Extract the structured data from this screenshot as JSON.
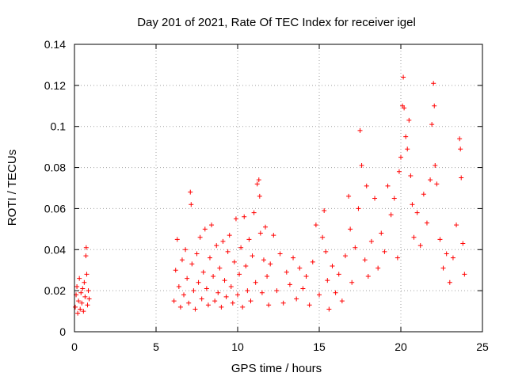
{
  "chart_data": {
    "type": "scatter",
    "title": "Day 201 of 2021, Rate Of TEC Index for receiver igel",
    "xlabel": "GPS time / hours",
    "ylabel": "ROTI / TECUs",
    "xlim": [
      0,
      25
    ],
    "ylim": [
      0,
      0.14
    ],
    "x_ticks": [
      0,
      5,
      10,
      15,
      20,
      25
    ],
    "x_tick_labels": [
      "0",
      "5",
      "10",
      "15",
      "20",
      "25"
    ],
    "y_ticks": [
      0,
      0.02,
      0.04,
      0.06,
      0.08,
      0.1,
      0.12,
      0.14
    ],
    "y_tick_labels": [
      "0",
      "0.02",
      "0.04",
      "0.06",
      "0.08",
      "0.1",
      "0.12",
      "0.14"
    ],
    "grid": true,
    "marker": "+",
    "marker_color": "#ff0000",
    "series": [
      {
        "name": "ROTI",
        "points": [
          [
            0.05,
            0.012
          ],
          [
            0.1,
            0.018
          ],
          [
            0.15,
            0.022
          ],
          [
            0.2,
            0.009
          ],
          [
            0.25,
            0.015
          ],
          [
            0.3,
            0.026
          ],
          [
            0.35,
            0.011
          ],
          [
            0.4,
            0.019
          ],
          [
            0.45,
            0.014
          ],
          [
            0.5,
            0.021
          ],
          [
            0.55,
            0.01
          ],
          [
            0.6,
            0.024
          ],
          [
            0.65,
            0.017
          ],
          [
            0.7,
            0.037
          ],
          [
            0.72,
            0.041
          ],
          [
            0.75,
            0.028
          ],
          [
            0.8,
            0.013
          ],
          [
            0.85,
            0.02
          ],
          [
            0.9,
            0.016
          ],
          [
            6.1,
            0.015
          ],
          [
            6.2,
            0.03
          ],
          [
            6.3,
            0.045
          ],
          [
            6.4,
            0.022
          ],
          [
            6.5,
            0.012
          ],
          [
            6.6,
            0.035
          ],
          [
            6.7,
            0.018
          ],
          [
            6.8,
            0.04
          ],
          [
            6.9,
            0.026
          ],
          [
            7.0,
            0.014
          ],
          [
            7.1,
            0.068
          ],
          [
            7.15,
            0.062
          ],
          [
            7.2,
            0.033
          ],
          [
            7.3,
            0.02
          ],
          [
            7.4,
            0.011
          ],
          [
            7.5,
            0.038
          ],
          [
            7.6,
            0.024
          ],
          [
            7.7,
            0.046
          ],
          [
            7.8,
            0.016
          ],
          [
            7.9,
            0.029
          ],
          [
            8.0,
            0.05
          ],
          [
            8.1,
            0.021
          ],
          [
            8.2,
            0.013
          ],
          [
            8.3,
            0.036
          ],
          [
            8.4,
            0.052
          ],
          [
            8.5,
            0.027
          ],
          [
            8.6,
            0.015
          ],
          [
            8.7,
            0.042
          ],
          [
            8.8,
            0.019
          ],
          [
            8.9,
            0.031
          ],
          [
            9.0,
            0.012
          ],
          [
            9.1,
            0.044
          ],
          [
            9.2,
            0.025
          ],
          [
            9.3,
            0.017
          ],
          [
            9.4,
            0.039
          ],
          [
            9.5,
            0.047
          ],
          [
            9.6,
            0.022
          ],
          [
            9.7,
            0.014
          ],
          [
            9.8,
            0.034
          ],
          [
            9.9,
            0.055
          ],
          [
            10.0,
            0.018
          ],
          [
            10.1,
            0.028
          ],
          [
            10.2,
            0.041
          ],
          [
            10.3,
            0.012
          ],
          [
            10.4,
            0.056
          ],
          [
            10.5,
            0.032
          ],
          [
            10.6,
            0.02
          ],
          [
            10.7,
            0.045
          ],
          [
            10.8,
            0.015
          ],
          [
            10.9,
            0.037
          ],
          [
            11.0,
            0.058
          ],
          [
            11.1,
            0.024
          ],
          [
            11.2,
            0.072
          ],
          [
            11.3,
            0.074
          ],
          [
            11.35,
            0.066
          ],
          [
            11.4,
            0.048
          ],
          [
            11.5,
            0.019
          ],
          [
            11.6,
            0.035
          ],
          [
            11.7,
            0.051
          ],
          [
            11.8,
            0.027
          ],
          [
            11.9,
            0.013
          ],
          [
            12.0,
            0.033
          ],
          [
            12.2,
            0.047
          ],
          [
            12.4,
            0.02
          ],
          [
            12.6,
            0.038
          ],
          [
            12.8,
            0.014
          ],
          [
            13.0,
            0.029
          ],
          [
            13.2,
            0.023
          ],
          [
            13.4,
            0.036
          ],
          [
            13.6,
            0.016
          ],
          [
            13.8,
            0.031
          ],
          [
            14.0,
            0.021
          ],
          [
            14.2,
            0.027
          ],
          [
            14.4,
            0.013
          ],
          [
            14.6,
            0.034
          ],
          [
            14.8,
            0.052
          ],
          [
            15.0,
            0.018
          ],
          [
            15.2,
            0.046
          ],
          [
            15.3,
            0.059
          ],
          [
            15.4,
            0.039
          ],
          [
            15.5,
            0.025
          ],
          [
            15.6,
            0.011
          ],
          [
            15.8,
            0.032
          ],
          [
            16.0,
            0.019
          ],
          [
            16.2,
            0.028
          ],
          [
            16.4,
            0.015
          ],
          [
            16.6,
            0.037
          ],
          [
            16.8,
            0.066
          ],
          [
            16.9,
            0.05
          ],
          [
            17.0,
            0.024
          ],
          [
            17.2,
            0.041
          ],
          [
            17.4,
            0.06
          ],
          [
            17.5,
            0.098
          ],
          [
            17.6,
            0.081
          ],
          [
            17.8,
            0.035
          ],
          [
            17.9,
            0.071
          ],
          [
            18.0,
            0.027
          ],
          [
            18.2,
            0.044
          ],
          [
            18.4,
            0.065
          ],
          [
            18.6,
            0.031
          ],
          [
            18.8,
            0.048
          ],
          [
            19.0,
            0.039
          ],
          [
            19.2,
            0.071
          ],
          [
            19.4,
            0.057
          ],
          [
            19.6,
            0.065
          ],
          [
            19.8,
            0.036
          ],
          [
            19.9,
            0.078
          ],
          [
            20.0,
            0.085
          ],
          [
            20.1,
            0.11
          ],
          [
            20.15,
            0.124
          ],
          [
            20.2,
            0.109
          ],
          [
            20.3,
            0.095
          ],
          [
            20.4,
            0.089
          ],
          [
            20.5,
            0.103
          ],
          [
            20.6,
            0.076
          ],
          [
            20.7,
            0.062
          ],
          [
            20.8,
            0.046
          ],
          [
            21.0,
            0.058
          ],
          [
            21.2,
            0.042
          ],
          [
            21.4,
            0.067
          ],
          [
            21.6,
            0.053
          ],
          [
            21.8,
            0.074
          ],
          [
            21.9,
            0.101
          ],
          [
            22.0,
            0.121
          ],
          [
            22.05,
            0.11
          ],
          [
            22.1,
            0.081
          ],
          [
            22.2,
            0.072
          ],
          [
            22.4,
            0.045
          ],
          [
            22.6,
            0.031
          ],
          [
            22.8,
            0.038
          ],
          [
            23.0,
            0.024
          ],
          [
            23.2,
            0.036
          ],
          [
            23.4,
            0.052
          ],
          [
            23.6,
            0.094
          ],
          [
            23.65,
            0.089
          ],
          [
            23.7,
            0.075
          ],
          [
            23.8,
            0.043
          ],
          [
            23.9,
            0.028
          ]
        ]
      }
    ]
  }
}
